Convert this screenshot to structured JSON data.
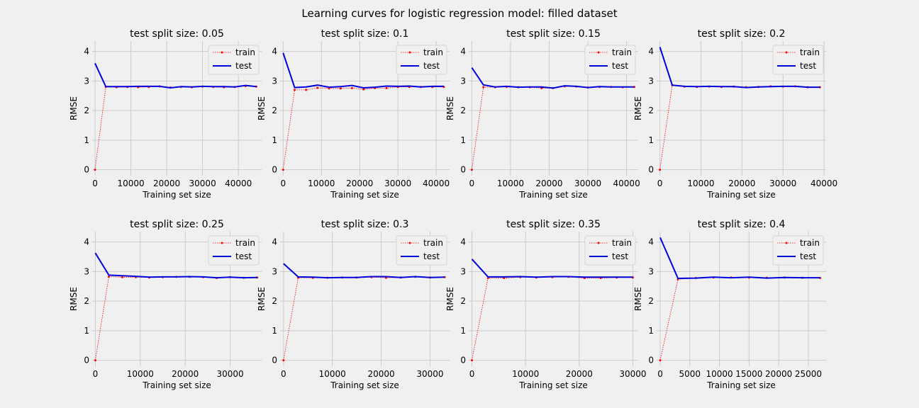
{
  "figure": {
    "title": "Learning curves for logistic regression model: filled dataset"
  },
  "colors": {
    "background": "#f0f0f0",
    "grid": "#cbcbcb",
    "train": "#ff0000",
    "test": "#0000dd"
  },
  "chart_data": [
    {
      "type": "line",
      "title": "test split size: 0.05",
      "xlabel": "Training set size",
      "ylabel": "RMSE",
      "xlim": [
        -800,
        46500
      ],
      "ylim": [
        -0.2,
        4.35
      ],
      "xticks": [
        0,
        10000,
        20000,
        30000,
        40000
      ],
      "yticks": [
        0,
        1,
        2,
        3,
        4
      ],
      "grid": true,
      "legend": "top-right",
      "x": [
        0,
        3000,
        6000,
        9000,
        12000,
        15000,
        18000,
        21000,
        24000,
        27000,
        30000,
        33000,
        36000,
        39000,
        42000,
        45000
      ],
      "series": [
        {
          "name": "train",
          "style": "dotted-marker",
          "values": [
            0,
            2.8,
            2.79,
            2.8,
            2.79,
            2.8,
            2.82,
            2.78,
            2.8,
            2.79,
            2.81,
            2.8,
            2.79,
            2.8,
            2.83,
            2.81
          ]
        },
        {
          "name": "test",
          "style": "solid",
          "values": [
            3.6,
            2.81,
            2.81,
            2.81,
            2.82,
            2.82,
            2.82,
            2.77,
            2.81,
            2.8,
            2.82,
            2.81,
            2.81,
            2.8,
            2.85,
            2.81
          ]
        }
      ]
    },
    {
      "type": "line",
      "title": "test split size: 0.1",
      "xlabel": "Training set size",
      "ylabel": "RMSE",
      "xlim": [
        -800,
        43500
      ],
      "ylim": [
        -0.2,
        4.35
      ],
      "xticks": [
        0,
        10000,
        20000,
        30000,
        40000
      ],
      "yticks": [
        0,
        1,
        2,
        3,
        4
      ],
      "grid": true,
      "legend": "top-right",
      "x": [
        0,
        3000,
        6000,
        9000,
        12000,
        15000,
        18000,
        21000,
        24000,
        27000,
        30000,
        33000,
        36000,
        39000,
        42000
      ],
      "series": [
        {
          "name": "train",
          "style": "dotted-marker",
          "values": [
            0,
            2.7,
            2.7,
            2.77,
            2.75,
            2.75,
            2.76,
            2.72,
            2.76,
            2.76,
            2.8,
            2.8,
            2.8,
            2.8,
            2.8
          ]
        },
        {
          "name": "test",
          "style": "solid",
          "values": [
            3.95,
            2.78,
            2.8,
            2.86,
            2.79,
            2.81,
            2.85,
            2.77,
            2.79,
            2.83,
            2.82,
            2.83,
            2.8,
            2.82,
            2.82
          ]
        }
      ]
    },
    {
      "type": "line",
      "title": "test split size: 0.15",
      "xlabel": "Training set size",
      "ylabel": "RMSE",
      "xlim": [
        -800,
        43000
      ],
      "ylim": [
        -0.2,
        4.35
      ],
      "xticks": [
        0,
        10000,
        20000,
        30000,
        40000
      ],
      "yticks": [
        0,
        1,
        2,
        3,
        4
      ],
      "grid": true,
      "legend": "top-right",
      "x": [
        0,
        3000,
        6000,
        9000,
        12000,
        15000,
        18000,
        21000,
        24000,
        27000,
        30000,
        33000,
        36000,
        39000,
        42000
      ],
      "series": [
        {
          "name": "train",
          "style": "dotted-marker",
          "values": [
            0,
            2.79,
            2.79,
            2.8,
            2.79,
            2.79,
            2.76,
            2.76,
            2.82,
            2.81,
            2.78,
            2.8,
            2.8,
            2.79,
            2.8
          ]
        },
        {
          "name": "test",
          "style": "solid",
          "values": [
            3.45,
            2.87,
            2.8,
            2.82,
            2.79,
            2.8,
            2.8,
            2.76,
            2.84,
            2.82,
            2.78,
            2.81,
            2.8,
            2.8,
            2.8
          ]
        }
      ]
    },
    {
      "type": "line",
      "title": "test split size: 0.2",
      "xlabel": "Training set size",
      "ylabel": "RMSE",
      "xlim": [
        -800,
        40500
      ],
      "ylim": [
        -0.2,
        4.35
      ],
      "xticks": [
        0,
        10000,
        20000,
        30000,
        40000
      ],
      "yticks": [
        0,
        1,
        2,
        3,
        4
      ],
      "grid": true,
      "legend": "top-right",
      "x": [
        0,
        3000,
        6000,
        9000,
        12000,
        15000,
        18000,
        21000,
        24000,
        27000,
        30000,
        33000,
        36000,
        39000
      ],
      "series": [
        {
          "name": "train",
          "style": "dotted-marker",
          "values": [
            0,
            2.86,
            2.81,
            2.8,
            2.81,
            2.8,
            2.81,
            2.79,
            2.8,
            2.82,
            2.81,
            2.82,
            2.79,
            2.79
          ]
        },
        {
          "name": "test",
          "style": "solid",
          "values": [
            4.15,
            2.86,
            2.82,
            2.81,
            2.82,
            2.81,
            2.81,
            2.78,
            2.8,
            2.81,
            2.82,
            2.82,
            2.79,
            2.79
          ]
        }
      ]
    },
    {
      "type": "line",
      "title": "test split size: 0.25",
      "xlabel": "Training set size",
      "ylabel": "RMSE",
      "xlim": [
        -700,
        37000
      ],
      "ylim": [
        -0.2,
        4.35
      ],
      "xticks": [
        0,
        10000,
        20000,
        30000
      ],
      "yticks": [
        0,
        1,
        2,
        3,
        4
      ],
      "grid": true,
      "legend": "top-right",
      "x": [
        0,
        3000,
        6000,
        9000,
        12000,
        15000,
        18000,
        21000,
        24000,
        27000,
        30000,
        33000,
        36000
      ],
      "series": [
        {
          "name": "train",
          "style": "dotted-marker",
          "values": [
            0,
            2.83,
            2.81,
            2.81,
            2.8,
            2.81,
            2.82,
            2.82,
            2.81,
            2.78,
            2.81,
            2.79,
            2.8
          ]
        },
        {
          "name": "test",
          "style": "solid",
          "values": [
            3.63,
            2.88,
            2.86,
            2.84,
            2.81,
            2.82,
            2.82,
            2.83,
            2.82,
            2.79,
            2.81,
            2.79,
            2.8
          ]
        }
      ]
    },
    {
      "type": "line",
      "title": "test split size: 0.3",
      "xlabel": "Training set size",
      "ylabel": "RMSE",
      "xlim": [
        -700,
        34000
      ],
      "ylim": [
        -0.2,
        4.35
      ],
      "xticks": [
        0,
        10000,
        20000,
        30000
      ],
      "yticks": [
        0,
        1,
        2,
        3,
        4
      ],
      "grid": true,
      "legend": "top-right",
      "x": [
        0,
        3000,
        6000,
        9000,
        12000,
        15000,
        18000,
        21000,
        24000,
        27000,
        30000,
        33000
      ],
      "series": [
        {
          "name": "train",
          "style": "dotted-marker",
          "values": [
            0,
            2.79,
            2.79,
            2.79,
            2.8,
            2.8,
            2.81,
            2.79,
            2.8,
            2.82,
            2.8,
            2.81
          ]
        },
        {
          "name": "test",
          "style": "solid",
          "values": [
            3.27,
            2.82,
            2.81,
            2.79,
            2.8,
            2.8,
            2.83,
            2.83,
            2.8,
            2.83,
            2.8,
            2.81
          ]
        }
      ]
    },
    {
      "type": "line",
      "title": "test split size: 0.35",
      "xlabel": "Training set size",
      "ylabel": "RMSE",
      "xlim": [
        -600,
        31000
      ],
      "ylim": [
        -0.2,
        4.35
      ],
      "xticks": [
        0,
        10000,
        20000,
        30000
      ],
      "yticks": [
        0,
        1,
        2,
        3,
        4
      ],
      "grid": true,
      "legend": "top-right",
      "x": [
        0,
        3000,
        6000,
        9000,
        12000,
        15000,
        18000,
        21000,
        24000,
        27000,
        30000
      ],
      "series": [
        {
          "name": "train",
          "style": "dotted-marker",
          "values": [
            0,
            2.78,
            2.78,
            2.81,
            2.8,
            2.81,
            2.82,
            2.78,
            2.78,
            2.8,
            2.8
          ]
        },
        {
          "name": "test",
          "style": "solid",
          "values": [
            3.42,
            2.82,
            2.82,
            2.83,
            2.81,
            2.83,
            2.83,
            2.81,
            2.81,
            2.81,
            2.81
          ]
        }
      ]
    },
    {
      "type": "line",
      "title": "test split size: 0.4",
      "xlabel": "Training set size",
      "ylabel": "RMSE",
      "xlim": [
        -600,
        28000
      ],
      "ylim": [
        -0.2,
        4.35
      ],
      "xticks": [
        0,
        5000,
        10000,
        15000,
        20000,
        25000
      ],
      "yticks": [
        0,
        1,
        2,
        3,
        4
      ],
      "grid": true,
      "legend": "top-right",
      "x": [
        0,
        3000,
        6000,
        9000,
        12000,
        15000,
        18000,
        21000,
        24000,
        27000
      ],
      "series": [
        {
          "name": "train",
          "style": "dotted-marker",
          "values": [
            0,
            2.74,
            2.78,
            2.8,
            2.8,
            2.8,
            2.79,
            2.8,
            2.79,
            2.78
          ]
        },
        {
          "name": "test",
          "style": "solid",
          "values": [
            4.15,
            2.77,
            2.78,
            2.81,
            2.79,
            2.81,
            2.78,
            2.8,
            2.79,
            2.79
          ]
        }
      ]
    }
  ]
}
